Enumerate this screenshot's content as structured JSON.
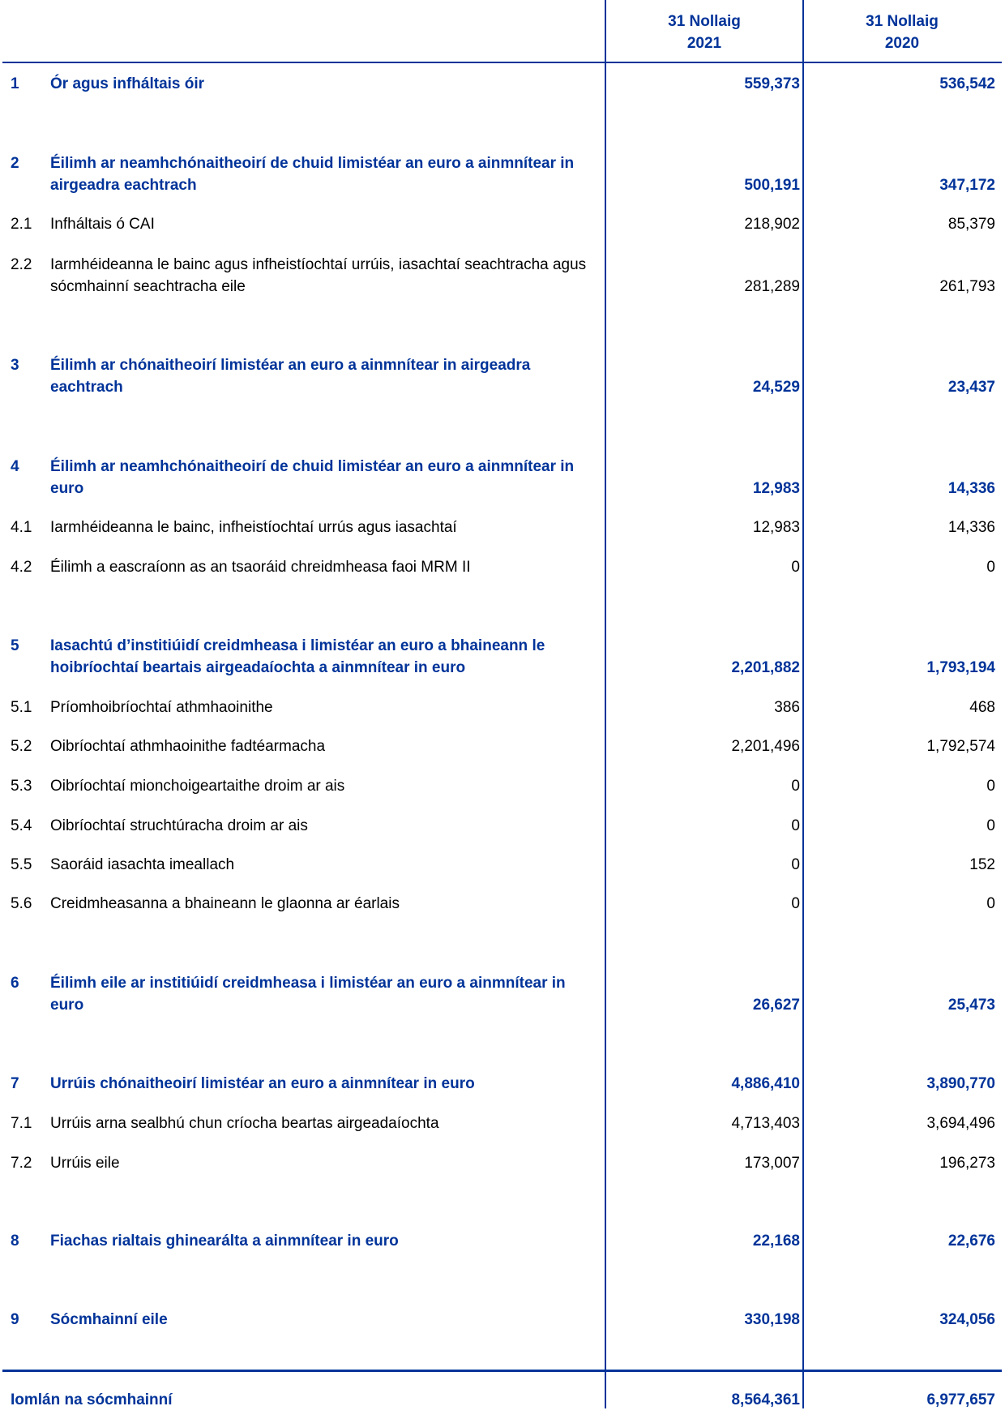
{
  "header": {
    "col1": [
      "31 Nollaig",
      "2021"
    ],
    "col2": [
      "31 Nollaig",
      "2020"
    ]
  },
  "rows": [
    {
      "num": "1",
      "label": "Ór agus infháltais óir",
      "v2021": "559,373",
      "v2020": "536,542",
      "main": true
    },
    {
      "num": "2",
      "label": "Éilimh ar neamhchónaitheoirí de chuid limistéar an euro a ainmnítear in airgeadra eachtrach",
      "v2021": "500,191",
      "v2020": "347,172",
      "main": true
    },
    {
      "num": "2.1",
      "label": "Infháltais ó CAI",
      "v2021": "218,902",
      "v2020": "85,379"
    },
    {
      "num": "2.2",
      "label": "Iarmhéideanna le bainc agus infheistíochtaí urrúis, iasachtaí seachtracha agus sócmhainní seachtracha eile",
      "v2021": "281,289",
      "v2020": "261,793"
    },
    {
      "num": "3",
      "label": "Éilimh ar chónaitheoirí limistéar an euro a ainmnítear in airgeadra eachtrach",
      "v2021": "24,529",
      "v2020": "23,437",
      "main": true
    },
    {
      "num": "4",
      "label": "Éilimh ar neamhchónaitheoirí de chuid limistéar an euro a ainmnítear in euro",
      "v2021": "12,983",
      "v2020": "14,336",
      "main": true
    },
    {
      "num": "4.1",
      "label": "Iarmhéideanna le bainc, infheistíochtaí urrús agus iasachtaí",
      "v2021": "12,983",
      "v2020": "14,336"
    },
    {
      "num": "4.2",
      "label": "Éilimh a eascraíonn as an tsaoráid chreidmheasa faoi MRM II",
      "v2021": "0",
      "v2020": "0"
    },
    {
      "num": "5",
      "label": "Iasachtú d’institiúidí creidmheasa i limistéar an euro a bhaineann le hoibríochtaí beartais airgeadaíochta a ainmnítear in euro",
      "v2021": "2,201,882",
      "v2020": "1,793,194",
      "main": true
    },
    {
      "num": "5.1",
      "label": "Príomhoibríochtaí athmhaoinithe",
      "v2021": "386",
      "v2020": "468"
    },
    {
      "num": "5.2",
      "label": "Oibríochtaí athmhaoinithe fadtéarmacha",
      "v2021": "2,201,496",
      "v2020": "1,792,574"
    },
    {
      "num": "5.3",
      "label": "Oibríochtaí mionchoigeartaithe droim ar ais",
      "v2021": "0",
      "v2020": "0"
    },
    {
      "num": "5.4",
      "label": "Oibríochtaí struchtúracha droim ar ais",
      "v2021": "0",
      "v2020": "0"
    },
    {
      "num": "5.5",
      "label": "Saoráid iasachta imeallach",
      "v2021": "0",
      "v2020": "152"
    },
    {
      "num": "5.6",
      "label": "Creidmheasanna a bhaineann le glaonna ar éarlais",
      "v2021": "0",
      "v2020": "0"
    },
    {
      "num": "6",
      "label": "Éilimh eile ar institiúidí creidmheasa i limistéar an euro a ainmnítear in euro",
      "v2021": "26,627",
      "v2020": "25,473",
      "main": true
    },
    {
      "num": "7",
      "label": "Urrúis chónaitheoirí limistéar an euro a ainmnítear in euro",
      "v2021": "4,886,410",
      "v2020": "3,890,770",
      "main": true
    },
    {
      "num": "7.1",
      "label": "Urrúis arna sealbhú chun críocha beartas airgeadaíochta",
      "v2021": "4,713,403",
      "v2020": "3,694,496"
    },
    {
      "num": "7.2",
      "label": "Urrúis eile",
      "v2021": "173,007",
      "v2020": "196,273"
    },
    {
      "num": "8",
      "label": "Fiachas rialtais ghinearálta a ainmnítear in euro",
      "v2021": "22,168",
      "v2020": "22,676",
      "main": true
    },
    {
      "num": "9",
      "label": "Sócmhainní eile",
      "v2021": "330,198",
      "v2020": "324,056",
      "main": true
    }
  ],
  "total": {
    "label": "Iomlán na sócmhainní",
    "v2021": "8,564,361",
    "v2020": "6,977,657"
  },
  "colors": {
    "accent": "#003399"
  }
}
